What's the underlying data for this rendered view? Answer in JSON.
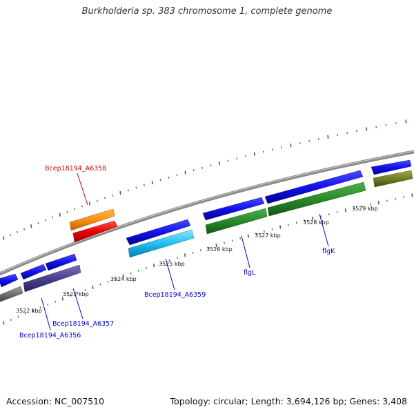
{
  "title": "Burkholderia sp. 383 chromosome 1, complete genome",
  "footer": {
    "accession": "Accession: NC_007510",
    "summary": "Topology: circular; Length: 3,694,126 bp; Genes: 3,408"
  },
  "colors": {
    "backbone": "#8a8a8a",
    "tick": "#2a7a1a",
    "label_blue": "#0000cc",
    "label_red": "#cc0000"
  },
  "kbp_labels": [
    "3522 kbp",
    "3523 kbp",
    "3524 kbp",
    "3525 kbp",
    "3526 kbp",
    "3527 kbp",
    "3528 kbp",
    "3529 kbp"
  ],
  "gene_labels": [
    {
      "id": "Bcep18194_A6358",
      "text": "Bcep18194_A6358"
    },
    {
      "id": "Bcep18194_A6359",
      "text": "Bcep18194_A6359"
    },
    {
      "id": "Bcep18194_A6357",
      "text": "Bcep18194_A6357"
    },
    {
      "id": "Bcep18194_A6356",
      "text": "Bcep18194_A6356"
    },
    {
      "id": "flgL",
      "text": "flgL"
    },
    {
      "id": "flgK",
      "text": "flgK"
    }
  ]
}
